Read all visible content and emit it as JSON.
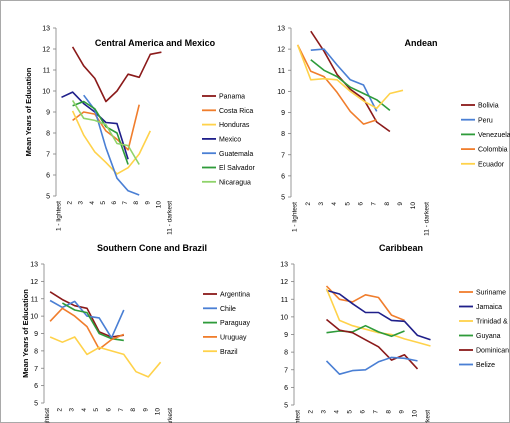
{
  "chart_data": [
    {
      "type": "line",
      "title": "Central America and Mexico",
      "ylabel": "Mean Years of Education",
      "categories": [
        "1 - lightest",
        "2",
        "3",
        "4",
        "5",
        "6",
        "7",
        "8",
        "9",
        "10",
        "11 - darkest"
      ],
      "y_ticks": [
        "13",
        "12",
        "11",
        "10",
        "9",
        "8",
        "7",
        "6",
        "5"
      ],
      "ylim": [
        5,
        13
      ],
      "series": [
        {
          "name": "Panama",
          "color": "#8b1a1a",
          "values": [
            null,
            12.1,
            11.2,
            10.6,
            9.5,
            10.0,
            10.8,
            10.65,
            11.75,
            11.85,
            null
          ]
        },
        {
          "name": "Costa Rica",
          "color": "#f07d2c",
          "values": [
            null,
            8.6,
            9.0,
            8.9,
            8.1,
            7.7,
            7.2,
            9.35,
            null,
            null,
            null
          ]
        },
        {
          "name": "Honduras",
          "color": "#ffd24a",
          "values": [
            null,
            9.05,
            7.9,
            7.1,
            6.6,
            6.05,
            6.35,
            7.0,
            8.1,
            null,
            null
          ]
        },
        {
          "name": "Mexico",
          "color": "#1f1f8a",
          "values": [
            9.7,
            9.95,
            9.4,
            9.0,
            8.5,
            8.45,
            6.75,
            null,
            null,
            null,
            null
          ]
        },
        {
          "name": "Guatemala",
          "color": "#4a7fd4",
          "values": [
            null,
            null,
            9.8,
            9.1,
            7.3,
            5.85,
            5.25,
            5.05,
            null,
            null,
            null
          ]
        },
        {
          "name": "El Salvador",
          "color": "#2e9b3a",
          "values": [
            null,
            9.3,
            9.5,
            9.15,
            8.3,
            8.0,
            6.5,
            null,
            null,
            null,
            null
          ]
        },
        {
          "name": "Nicaragua",
          "color": "#8fd36a",
          "values": [
            null,
            9.55,
            8.7,
            8.6,
            8.4,
            7.5,
            7.4,
            6.5,
            null,
            null,
            null
          ]
        }
      ]
    },
    {
      "type": "line",
      "title": "Andean",
      "ylabel": "",
      "categories": [
        "1 - lightest",
        "2",
        "3",
        "4",
        "5",
        "6",
        "7",
        "8",
        "9",
        "10",
        "11 - darkest"
      ],
      "y_ticks": [
        "13",
        "12",
        "11",
        "10",
        "9",
        "8",
        "7",
        "6",
        "5"
      ],
      "ylim": [
        5,
        13
      ],
      "series": [
        {
          "name": "Bolivia",
          "color": "#8b1a1a",
          "values": [
            null,
            12.85,
            11.9,
            10.8,
            10.1,
            9.65,
            8.55,
            8.1,
            null,
            null,
            null
          ]
        },
        {
          "name": "Peru",
          "color": "#4a7fd4",
          "values": [
            null,
            11.95,
            12.0,
            11.25,
            10.55,
            10.3,
            9.05,
            null,
            null,
            null,
            null
          ]
        },
        {
          "name": "Venezuela",
          "color": "#2e9b3a",
          "values": [
            null,
            11.5,
            11.0,
            10.7,
            10.2,
            9.9,
            9.6,
            9.1,
            null,
            null,
            null
          ]
        },
        {
          "name": "Colombia",
          "color": "#f07d2c",
          "values": [
            12.2,
            10.95,
            10.7,
            9.95,
            9.05,
            8.45,
            8.65,
            null,
            null,
            null,
            null
          ]
        },
        {
          "name": "Ecuador",
          "color": "#ffd24a",
          "values": [
            12.2,
            10.55,
            10.6,
            10.55,
            10.0,
            9.55,
            9.2,
            9.9,
            10.05,
            null,
            null
          ]
        }
      ]
    },
    {
      "type": "line",
      "title": "Southern Cone and Brazil",
      "ylabel": "Mean Years of Education",
      "categories": [
        "1 - lightest",
        "2",
        "3",
        "4",
        "5",
        "6",
        "7",
        "8",
        "9",
        "10",
        "11 - darkest"
      ],
      "y_ticks": [
        "13",
        "12",
        "11",
        "10",
        "9",
        "8",
        "7",
        "6",
        "5"
      ],
      "ylim": [
        5,
        13
      ],
      "series": [
        {
          "name": "Argentina",
          "color": "#8b1a1a",
          "values": [
            11.4,
            10.95,
            10.6,
            10.45,
            9.1,
            8.8,
            8.9,
            null,
            null,
            null,
            null
          ]
        },
        {
          "name": "Chile",
          "color": "#4a7fd4",
          "values": [
            10.9,
            10.5,
            10.85,
            10.0,
            9.9,
            8.75,
            10.35,
            null,
            null,
            null,
            null
          ]
        },
        {
          "name": "Paraguay",
          "color": "#2e9b3a",
          "values": [
            null,
            10.75,
            10.35,
            10.2,
            9.0,
            8.7,
            8.6,
            null,
            null,
            null,
            null
          ]
        },
        {
          "name": "Uruguay",
          "color": "#f07d2c",
          "values": [
            9.7,
            10.45,
            10.0,
            9.4,
            8.1,
            8.65,
            8.95,
            null,
            null,
            null,
            null
          ]
        },
        {
          "name": "Brazil",
          "color": "#ffd24a",
          "values": [
            8.8,
            8.5,
            8.8,
            7.8,
            8.2,
            8.0,
            7.8,
            6.8,
            6.5,
            7.35,
            null
          ]
        }
      ]
    },
    {
      "type": "line",
      "title": "Caribbean",
      "ylabel": "",
      "categories": [
        "1 - lightest",
        "2",
        "3",
        "4",
        "5",
        "6",
        "7",
        "8",
        "9",
        "10",
        "11 - darkest"
      ],
      "y_ticks": [
        "13",
        "12",
        "11",
        "10",
        "9",
        "8",
        "7",
        "6",
        "5"
      ],
      "ylim": [
        5,
        13
      ],
      "series": [
        {
          "name": "Suriname",
          "color": "#f07d2c",
          "values": [
            null,
            null,
            11.75,
            11.0,
            10.85,
            11.25,
            11.1,
            10.1,
            9.8,
            null,
            null
          ]
        },
        {
          "name": "Jamaica",
          "color": "#1f1f8a",
          "values": [
            null,
            null,
            11.5,
            11.3,
            10.75,
            10.25,
            10.25,
            9.8,
            9.75,
            8.95,
            8.7
          ]
        },
        {
          "name": "Trinidad &",
          "color": "#ffd24a",
          "values": [
            null,
            null,
            11.6,
            9.8,
            9.5,
            9.3,
            9.1,
            9.0,
            8.75,
            8.55,
            8.35
          ]
        },
        {
          "name": "Guyana",
          "color": "#2e9b3a",
          "values": [
            null,
            null,
            9.1,
            9.2,
            9.15,
            9.5,
            9.15,
            8.9,
            9.2,
            null,
            null
          ]
        },
        {
          "name": "Dominican",
          "color": "#8b1a1a",
          "values": [
            null,
            null,
            9.85,
            9.25,
            9.1,
            8.7,
            8.3,
            7.55,
            7.85,
            7.05,
            null
          ]
        },
        {
          "name": "Belize",
          "color": "#4a7fd4",
          "values": [
            null,
            null,
            7.5,
            6.75,
            6.95,
            7.0,
            7.45,
            7.7,
            7.65,
            7.5,
            null
          ]
        }
      ]
    }
  ]
}
